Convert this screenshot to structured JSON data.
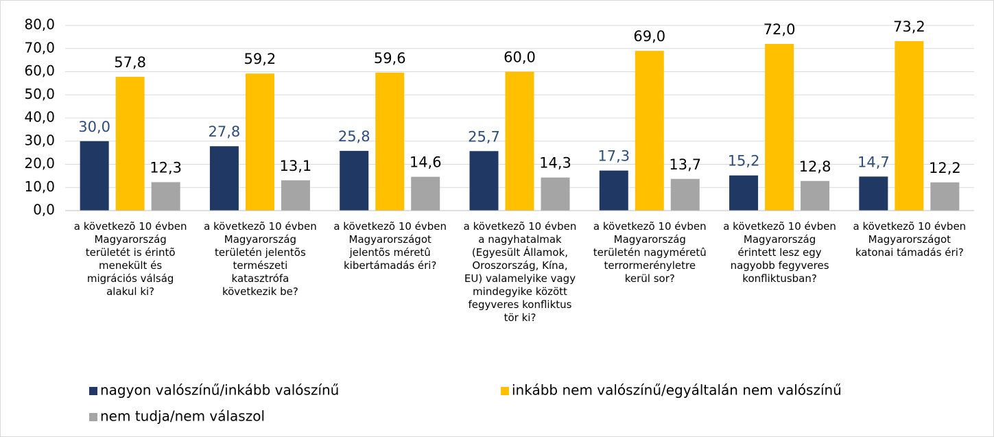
{
  "chart_data": {
    "type": "bar",
    "categories": [
      "a következõ 10 évben Magyarország területét is érintõ menekült és migrációs válság alakul ki?",
      "a következõ 10 évben Magyarország területén jelentõs természeti katasztrófa következik be?",
      "a következõ 10 évben Magyarországot jelentõs méretû kibertámadás éri?",
      "a következõ 10 évben a nagyhatalmak (Egyesült Államok, Oroszország, Kína, EU) valamelyike vagy mindegyike között fegyveres konfliktus tör ki?",
      "a következõ 10 évben Magyarország területén nagyméretû terrormerényletre kerül sor?",
      "a következõ 10 évben Magyarország érintett lesz egy nagyobb fegyveres konfliktusban?",
      "a következõ 10 évben Magyarországot katonai támadás éri?"
    ],
    "series": [
      {
        "name": "nagyon valószínű/inkább valószínű",
        "color": "#1f3864",
        "label_color": "#2e4d7b",
        "values": [
          30.0,
          27.8,
          25.8,
          25.7,
          17.3,
          15.2,
          14.7
        ],
        "value_labels": [
          "30,0",
          "27,8",
          "25,8",
          "25,7",
          "17,3",
          "15,2",
          "14,7"
        ]
      },
      {
        "name": "inkább nem valószínű/egyáltalán nem valószínű",
        "color": "#ffc000",
        "label_color": "#000000",
        "values": [
          57.8,
          59.2,
          59.6,
          60.0,
          69.0,
          72.0,
          73.2
        ],
        "value_labels": [
          "57,8",
          "59,2",
          "59,6",
          "60,0",
          "69,0",
          "72,0",
          "73,2"
        ]
      },
      {
        "name": "nem tudja/nem válaszol",
        "color": "#a5a5a5",
        "label_color": "#000000",
        "values": [
          12.3,
          13.1,
          14.6,
          14.3,
          13.7,
          12.8,
          12.2
        ],
        "value_labels": [
          "12,3",
          "13,1",
          "14,6",
          "14,3",
          "13,7",
          "12,8",
          "12,2"
        ]
      }
    ],
    "ylim": [
      0,
      80
    ],
    "yticks": [
      {
        "value": 0,
        "label": "0,0"
      },
      {
        "value": 10,
        "label": "10,0"
      },
      {
        "value": 20,
        "label": "20,0"
      },
      {
        "value": 30,
        "label": "30,0"
      },
      {
        "value": 40,
        "label": "40,0"
      },
      {
        "value": 50,
        "label": "50,0"
      },
      {
        "value": 60,
        "label": "60,0"
      },
      {
        "value": 70,
        "label": "70,0"
      },
      {
        "value": 80,
        "label": "80,0"
      }
    ],
    "grid": true,
    "legend": "bottom"
  }
}
